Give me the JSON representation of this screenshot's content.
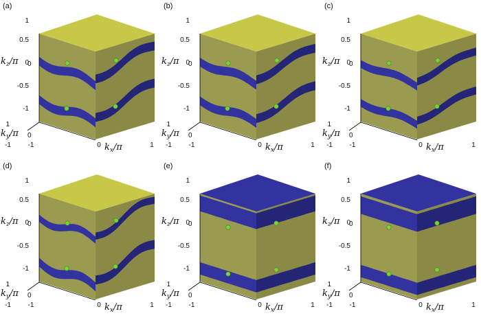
{
  "figure": {
    "colors": {
      "band_blue": "#33339f",
      "band_blue_dark": "#252578",
      "yellow_top": "#c8c848",
      "yellow_side": "#9a9a50",
      "yellow_side_dark": "#8a8a46",
      "sphere": "#7cd23a"
    },
    "axis_labels": {
      "kz_main": "k",
      "kz_sub": "z",
      "kz_rest": "/π",
      "ky_main": "k",
      "ky_sub": "y",
      "ky_rest": "/π",
      "kx_main": "k",
      "kx_sub": "x",
      "kx_rest": "/π"
    },
    "ticks": {
      "z": [
        "1",
        "0.5",
        "0",
        "-0.5",
        "-1"
      ],
      "y": [
        "1",
        "0",
        "-1"
      ],
      "x": [
        "-1",
        "0",
        "1"
      ]
    },
    "panels": [
      {
        "label": "(a)",
        "top_face": "yellow",
        "variant": "wavy-strong"
      },
      {
        "label": "(b)",
        "top_face": "yellow",
        "variant": "wavy-medium"
      },
      {
        "label": "(c)",
        "top_face": "yellow",
        "variant": "wavy-shifted"
      },
      {
        "label": "(d)",
        "top_face": "yellow",
        "variant": "wavy-deep"
      },
      {
        "label": "(e)",
        "top_face": "blue",
        "variant": "flat"
      },
      {
        "label": "(f)",
        "top_face": "blue",
        "variant": "flat-shifted"
      }
    ]
  }
}
